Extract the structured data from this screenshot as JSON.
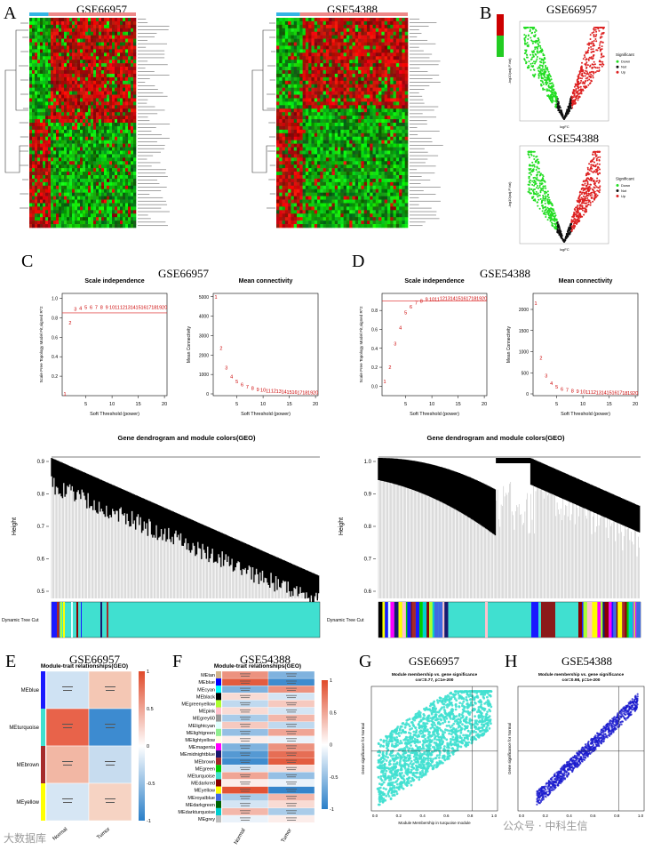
{
  "panels": {
    "A": {
      "letter": "A",
      "titles": [
        "GSE66957",
        "GSE54388"
      ]
    },
    "B": {
      "letter": "B",
      "titles": [
        "GSE66957",
        "GSE54388"
      ],
      "legend_title": "Significant",
      "legend_items": [
        "Down",
        "Not",
        "Up"
      ],
      "xlabel": "logFC",
      "ylabel": "-log10(adj.P.Val)"
    },
    "C": {
      "letter": "C",
      "dataset": "GSE66957"
    },
    "D": {
      "letter": "D",
      "dataset": "GSE54388"
    },
    "E": {
      "letter": "E",
      "dataset": "GSE66957",
      "title": "Module-trait relationships(GEO)",
      "rows": [
        "MEblue",
        "MEturquoise",
        "MEbrown",
        "MEyellow"
      ],
      "cols": [
        "Normal",
        "Tumor"
      ],
      "colors": [
        "#1a1aff",
        "#40e0d0",
        "#a52a2a",
        "#ffff00"
      ],
      "cell_colors": [
        [
          "#cfe2f3",
          "#f4c7b4"
        ],
        [
          "#e8634a",
          "#3d8bd0"
        ],
        [
          "#f2b7a4",
          "#c7dcef"
        ],
        [
          "#d6e6f4",
          "#f6d3c3"
        ]
      ],
      "colorbar": [
        "1",
        "0.5",
        "0",
        "-0.5",
        "-1"
      ]
    },
    "F": {
      "letter": "F",
      "dataset": "GSE54388",
      "title": "Module-trait relationships(GEO)",
      "rows": [
        "MEtan",
        "MEblue",
        "MEcyan",
        "MEblack",
        "MEgreenyellow",
        "MEpink",
        "MEgrey60",
        "MElightcyan",
        "MElightgreen",
        "MElightyellow",
        "MEmagenta",
        "MEmidnightblue",
        "MEbrown",
        "MEgreen",
        "MEturquoise",
        "MEdarkred",
        "MEyellow",
        "MEroyalblue",
        "MEdarkgreen",
        "MEdarkturquoise",
        "MEgrey"
      ],
      "cols": [
        "Normal",
        "Tumor"
      ],
      "colors": [
        "#d2b48c",
        "#0000ff",
        "#00ffff",
        "#000000",
        "#adff2f",
        "#ffc0cb",
        "#999999",
        "#e0ffff",
        "#90ee90",
        "#ffffe0",
        "#ff00ff",
        "#191970",
        "#a52a2a",
        "#00cc00",
        "#40e0d0",
        "#8b0000",
        "#ffff00",
        "#4169e1",
        "#006400",
        "#00ced1",
        "#bebebe"
      ],
      "corr": [
        [
          0.6,
          -0.6
        ],
        [
          0.9,
          -0.9
        ],
        [
          -0.6,
          0.6
        ],
        [
          0.2,
          -0.2
        ],
        [
          -0.3,
          0.3
        ],
        [
          0.2,
          -0.2
        ],
        [
          -0.4,
          0.4
        ],
        [
          0.3,
          -0.3
        ],
        [
          -0.5,
          0.5
        ],
        [
          0.1,
          -0.1
        ],
        [
          -0.6,
          0.6
        ],
        [
          -0.8,
          0.8
        ],
        [
          -0.9,
          0.9
        ],
        [
          -0.2,
          0.2
        ],
        [
          0.5,
          -0.5
        ],
        [
          0.1,
          -0.1
        ],
        [
          0.95,
          -0.95
        ],
        [
          -0.4,
          0.4
        ],
        [
          -0.2,
          0.2
        ],
        [
          0.4,
          -0.4
        ],
        [
          -0.1,
          0.1
        ]
      ],
      "colorbar": [
        "1",
        "0.5",
        "0",
        "-0.5",
        "-1"
      ]
    },
    "G": {
      "letter": "G",
      "dataset": "GSE66957",
      "title": "Module membership vs. gene significance",
      "stat": "cor=0.77, p=1e-200",
      "xlabel": "Module Membership in turquoise module",
      "ylabel": "Gene significance for Normal",
      "color": "#40e0d0"
    },
    "H": {
      "letter": "H",
      "dataset": "GSE54388",
      "title": "Module membership vs. gene significance",
      "stat": "cor=0.98, p=1e-200",
      "ylabel": "Gene significance for Normal",
      "color": "#1a1acd"
    }
  },
  "scale_free": {
    "title_left": "Scale independence",
    "title_right": "Mean connectivity",
    "xlabel": "Soft Threshold (power)",
    "ylabel_left": "Scale Free Topology Model Fit,signed R^2",
    "ylabel_right": "Mean Connectivity",
    "C": {
      "r2": [
        0.02,
        0.75,
        0.89,
        0.9,
        0.91,
        0.91,
        0.91,
        0.91,
        0.91,
        0.91,
        0.91,
        0.91,
        0.91,
        0.91,
        0.91,
        0.91,
        0.91,
        0.91,
        0.91,
        0.91
      ],
      "k": [
        5000,
        2350,
        1350,
        900,
        650,
        480,
        370,
        290,
        240,
        200,
        170,
        150,
        130,
        115,
        100,
        90,
        80,
        72,
        65,
        60
      ],
      "left_yticks": [
        "0.2",
        "0.4",
        "0.6",
        "0.8",
        "1.0"
      ],
      "right_yticks": [
        "0",
        "1000",
        "2000",
        "3000",
        "4000",
        "5000"
      ],
      "ymax_k": 5000,
      "cut": 0.85
    },
    "D": {
      "r2": [
        0.05,
        0.2,
        0.45,
        0.62,
        0.78,
        0.84,
        0.88,
        0.9,
        0.92,
        0.92,
        0.92,
        0.93,
        0.93,
        0.93,
        0.93,
        0.93,
        0.93,
        0.93,
        0.93,
        0.93
      ],
      "k": [
        2150,
        850,
        430,
        250,
        170,
        120,
        90,
        70,
        58,
        50,
        44,
        40,
        36,
        33,
        31,
        29,
        27,
        26,
        25,
        24
      ],
      "left_yticks": [
        "0.0",
        "0.2",
        "0.4",
        "0.6",
        "0.8"
      ],
      "right_yticks": [
        "0",
        "500",
        "1000",
        "1500",
        "2000"
      ],
      "ymax_k": 2300,
      "cut": 0.9
    },
    "xticks": [
      "5",
      "10",
      "15",
      "20"
    ]
  },
  "dendro": {
    "title": "Gene dendrogram and module colors(GEO)",
    "ylabel": "Height",
    "cut_label": "Dynamic Tree Cut",
    "C_yticks": [
      "0.9",
      "0.8",
      "0.7",
      "0.6",
      "0.5"
    ],
    "D_yticks": [
      "1.0",
      "0.9",
      "0.8",
      "0.7",
      "0.6"
    ]
  },
  "watermark": {
    "left": "大数据库",
    "right": "公众号 · 中科生信"
  }
}
